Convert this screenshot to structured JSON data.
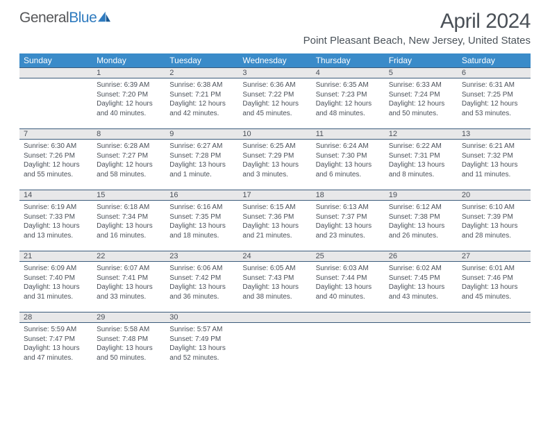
{
  "logo": {
    "text1": "General",
    "text2": "Blue"
  },
  "title": "April 2024",
  "location": "Point Pleasant Beach, New Jersey, United States",
  "colors": {
    "header_bg": "#3a8bc9",
    "header_fg": "#ffffff",
    "daynum_bg": "#e8e8e9",
    "daynum_border": "#3a5a7a",
    "text": "#4a5059",
    "logo_gray": "#555658",
    "logo_blue": "#2f7bbf"
  },
  "day_headers": [
    "Sunday",
    "Monday",
    "Tuesday",
    "Wednesday",
    "Thursday",
    "Friday",
    "Saturday"
  ],
  "weeks": [
    [
      null,
      {
        "n": "1",
        "sr": "Sunrise: 6:39 AM",
        "ss": "Sunset: 7:20 PM",
        "dl": "Daylight: 12 hours and 40 minutes."
      },
      {
        "n": "2",
        "sr": "Sunrise: 6:38 AM",
        "ss": "Sunset: 7:21 PM",
        "dl": "Daylight: 12 hours and 42 minutes."
      },
      {
        "n": "3",
        "sr": "Sunrise: 6:36 AM",
        "ss": "Sunset: 7:22 PM",
        "dl": "Daylight: 12 hours and 45 minutes."
      },
      {
        "n": "4",
        "sr": "Sunrise: 6:35 AM",
        "ss": "Sunset: 7:23 PM",
        "dl": "Daylight: 12 hours and 48 minutes."
      },
      {
        "n": "5",
        "sr": "Sunrise: 6:33 AM",
        "ss": "Sunset: 7:24 PM",
        "dl": "Daylight: 12 hours and 50 minutes."
      },
      {
        "n": "6",
        "sr": "Sunrise: 6:31 AM",
        "ss": "Sunset: 7:25 PM",
        "dl": "Daylight: 12 hours and 53 minutes."
      }
    ],
    [
      {
        "n": "7",
        "sr": "Sunrise: 6:30 AM",
        "ss": "Sunset: 7:26 PM",
        "dl": "Daylight: 12 hours and 55 minutes."
      },
      {
        "n": "8",
        "sr": "Sunrise: 6:28 AM",
        "ss": "Sunset: 7:27 PM",
        "dl": "Daylight: 12 hours and 58 minutes."
      },
      {
        "n": "9",
        "sr": "Sunrise: 6:27 AM",
        "ss": "Sunset: 7:28 PM",
        "dl": "Daylight: 13 hours and 1 minute."
      },
      {
        "n": "10",
        "sr": "Sunrise: 6:25 AM",
        "ss": "Sunset: 7:29 PM",
        "dl": "Daylight: 13 hours and 3 minutes."
      },
      {
        "n": "11",
        "sr": "Sunrise: 6:24 AM",
        "ss": "Sunset: 7:30 PM",
        "dl": "Daylight: 13 hours and 6 minutes."
      },
      {
        "n": "12",
        "sr": "Sunrise: 6:22 AM",
        "ss": "Sunset: 7:31 PM",
        "dl": "Daylight: 13 hours and 8 minutes."
      },
      {
        "n": "13",
        "sr": "Sunrise: 6:21 AM",
        "ss": "Sunset: 7:32 PM",
        "dl": "Daylight: 13 hours and 11 minutes."
      }
    ],
    [
      {
        "n": "14",
        "sr": "Sunrise: 6:19 AM",
        "ss": "Sunset: 7:33 PM",
        "dl": "Daylight: 13 hours and 13 minutes."
      },
      {
        "n": "15",
        "sr": "Sunrise: 6:18 AM",
        "ss": "Sunset: 7:34 PM",
        "dl": "Daylight: 13 hours and 16 minutes."
      },
      {
        "n": "16",
        "sr": "Sunrise: 6:16 AM",
        "ss": "Sunset: 7:35 PM",
        "dl": "Daylight: 13 hours and 18 minutes."
      },
      {
        "n": "17",
        "sr": "Sunrise: 6:15 AM",
        "ss": "Sunset: 7:36 PM",
        "dl": "Daylight: 13 hours and 21 minutes."
      },
      {
        "n": "18",
        "sr": "Sunrise: 6:13 AM",
        "ss": "Sunset: 7:37 PM",
        "dl": "Daylight: 13 hours and 23 minutes."
      },
      {
        "n": "19",
        "sr": "Sunrise: 6:12 AM",
        "ss": "Sunset: 7:38 PM",
        "dl": "Daylight: 13 hours and 26 minutes."
      },
      {
        "n": "20",
        "sr": "Sunrise: 6:10 AM",
        "ss": "Sunset: 7:39 PM",
        "dl": "Daylight: 13 hours and 28 minutes."
      }
    ],
    [
      {
        "n": "21",
        "sr": "Sunrise: 6:09 AM",
        "ss": "Sunset: 7:40 PM",
        "dl": "Daylight: 13 hours and 31 minutes."
      },
      {
        "n": "22",
        "sr": "Sunrise: 6:07 AM",
        "ss": "Sunset: 7:41 PM",
        "dl": "Daylight: 13 hours and 33 minutes."
      },
      {
        "n": "23",
        "sr": "Sunrise: 6:06 AM",
        "ss": "Sunset: 7:42 PM",
        "dl": "Daylight: 13 hours and 36 minutes."
      },
      {
        "n": "24",
        "sr": "Sunrise: 6:05 AM",
        "ss": "Sunset: 7:43 PM",
        "dl": "Daylight: 13 hours and 38 minutes."
      },
      {
        "n": "25",
        "sr": "Sunrise: 6:03 AM",
        "ss": "Sunset: 7:44 PM",
        "dl": "Daylight: 13 hours and 40 minutes."
      },
      {
        "n": "26",
        "sr": "Sunrise: 6:02 AM",
        "ss": "Sunset: 7:45 PM",
        "dl": "Daylight: 13 hours and 43 minutes."
      },
      {
        "n": "27",
        "sr": "Sunrise: 6:01 AM",
        "ss": "Sunset: 7:46 PM",
        "dl": "Daylight: 13 hours and 45 minutes."
      }
    ],
    [
      {
        "n": "28",
        "sr": "Sunrise: 5:59 AM",
        "ss": "Sunset: 7:47 PM",
        "dl": "Daylight: 13 hours and 47 minutes."
      },
      {
        "n": "29",
        "sr": "Sunrise: 5:58 AM",
        "ss": "Sunset: 7:48 PM",
        "dl": "Daylight: 13 hours and 50 minutes."
      },
      {
        "n": "30",
        "sr": "Sunrise: 5:57 AM",
        "ss": "Sunset: 7:49 PM",
        "dl": "Daylight: 13 hours and 52 minutes."
      },
      null,
      null,
      null,
      null
    ]
  ]
}
